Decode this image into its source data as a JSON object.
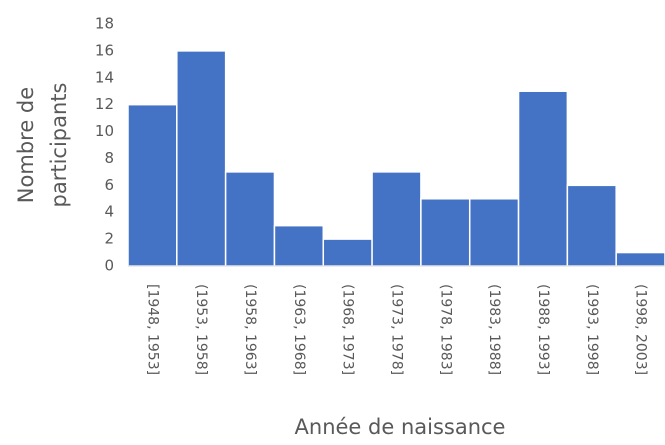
{
  "chart_data": {
    "type": "bar",
    "categories": [
      "[1948, 1953]",
      "(1953, 1958]",
      "(1958, 1963]",
      "(1963, 1968]",
      "(1968, 1973]",
      "(1973, 1978]",
      "(1978, 1983]",
      "(1983, 1988]",
      "(1988, 1993]",
      "(1993, 1998]",
      "(1998, 2003]"
    ],
    "values": [
      12,
      16,
      7,
      3,
      2,
      7,
      5,
      5,
      13,
      6,
      1
    ],
    "color": "#4472c4",
    "xlabel": "Année de naissance",
    "ylabel": [
      "Nombre de",
      "participants"
    ],
    "ylim": [
      0,
      18
    ],
    "yticks": [
      0,
      2,
      4,
      6,
      8,
      10,
      12,
      14,
      16,
      18
    ],
    "grid": false
  }
}
